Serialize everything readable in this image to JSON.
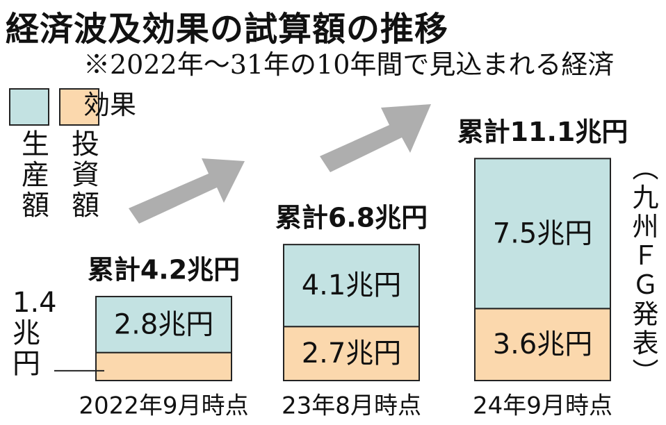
{
  "chart_data": {
    "type": "stacked_bar",
    "title": "経済波及効果の試算額の推移",
    "subtitle": "※2022年～31年の10年間で見込まれる経済効果",
    "source": "（九州ＦＧ発表）",
    "categories": [
      "2022年9月時点",
      "23年8月時点",
      "24年9月時点"
    ],
    "series": [
      {
        "name": "投資額",
        "color": "#fbd8ad",
        "values": [
          1.4,
          2.7,
          3.6
        ],
        "value_labels": [
          "1.4兆円",
          "2.7兆円",
          "3.6兆円"
        ]
      },
      {
        "name": "生産額",
        "color": "#c3e2e2",
        "values": [
          2.8,
          4.1,
          7.5
        ],
        "value_labels": [
          "2.8兆円",
          "4.1兆円",
          "7.5兆円"
        ]
      }
    ],
    "totals": [
      4.2,
      6.8,
      11.1
    ],
    "total_labels": [
      "累計4.2兆円",
      "累計6.8兆円",
      "累計11.1兆円"
    ]
  }
}
